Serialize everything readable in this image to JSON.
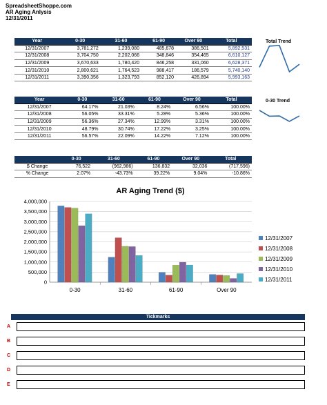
{
  "header": {
    "company": "SpreadsheetShoppe.com",
    "report": "AR Aging Anlysis",
    "date": "12/31/2011"
  },
  "colors": {
    "header_bg": "#17365d",
    "series": [
      "#4f81bd",
      "#c0504d",
      "#9bbb59",
      "#8064a2",
      "#4bacc6"
    ],
    "trend_line": "#2e6aa6"
  },
  "table1": {
    "columns": [
      "Year",
      "0-30",
      "31-60",
      "61-90",
      "Over 90",
      "Total"
    ],
    "rows": [
      [
        "12/31/2007",
        "3,781,272",
        "1,239,080",
        "485,678",
        "386,501",
        "5,892,531"
      ],
      [
        "12/31/2008",
        "3,704,750",
        "2,202,066",
        "348,846",
        "354,465",
        "6,610,127"
      ],
      [
        "12/31/2009",
        "3,670,633",
        "1,780,420",
        "846,258",
        "331,060",
        "6,628,371"
      ],
      [
        "12/31/2010",
        "2,800,621",
        "1,764,523",
        "988,417",
        "186,579",
        "5,740,140"
      ],
      [
        "12/31/2011",
        "3,390,356",
        "1,323,793",
        "852,120",
        "426,894",
        "5,993,163"
      ]
    ]
  },
  "table2": {
    "columns": [
      "Year",
      "0-30",
      "31-60",
      "61-90",
      "Over 90",
      "Total"
    ],
    "rows": [
      [
        "12/31/2007",
        "64.17%",
        "21.03%",
        "8.24%",
        "6.56%",
        "100.00%"
      ],
      [
        "12/31/2008",
        "56.05%",
        "33.31%",
        "5.28%",
        "5.36%",
        "100.00%"
      ],
      [
        "12/31/2009",
        "56.36%",
        "27.34%",
        "12.99%",
        "3.31%",
        "100.00%"
      ],
      [
        "12/31/2010",
        "48.79%",
        "30.74%",
        "17.22%",
        "3.25%",
        "100.00%"
      ],
      [
        "12/31/2011",
        "56.57%",
        "22.09%",
        "14.22%",
        "7.12%",
        "100.00%"
      ]
    ]
  },
  "table3": {
    "columns": [
      "",
      "0-30",
      "31-60",
      "61-90",
      "Over 90",
      "Total"
    ],
    "rows": [
      [
        "$ Change",
        "76,522",
        "(962,986)",
        "136,832",
        "32,036",
        "(717,596)"
      ],
      [
        "% Change",
        "2.07%",
        "-43.73%",
        "39.22%",
        "9.04%",
        "-10.86%"
      ]
    ]
  },
  "trends": {
    "total_title": "Total Trend",
    "total_values": [
      5892531,
      6610127,
      6628371,
      5740140,
      5993163
    ],
    "zero30_title": "0-30 Trend",
    "zero30_values": [
      64.17,
      56.05,
      56.36,
      48.79,
      56.57
    ]
  },
  "chart_data": {
    "type": "bar",
    "title": "AR Aging Trend ($)",
    "categories": [
      "0-30",
      "31-60",
      "61-90",
      "Over 90"
    ],
    "ylim": [
      0,
      4000000
    ],
    "yticks": [
      "0",
      "500,000",
      "1,000,000",
      "1,500,000",
      "2,000,000",
      "2,500,000",
      "3,000,000",
      "3,500,000",
      "4,000,000"
    ],
    "legend_position": "right",
    "grid": true,
    "series": [
      {
        "name": "12/31/2007",
        "values": [
          3781272,
          1239080,
          485678,
          386501
        ]
      },
      {
        "name": "12/31/2008",
        "values": [
          3704750,
          2202066,
          348846,
          354465
        ]
      },
      {
        "name": "12/31/2009",
        "values": [
          3670633,
          1780420,
          846258,
          331060
        ]
      },
      {
        "name": "12/31/2010",
        "values": [
          2800621,
          1764523,
          988417,
          186579
        ]
      },
      {
        "name": "12/31/2011",
        "values": [
          3390356,
          1323793,
          852120,
          426894
        ]
      }
    ]
  },
  "tickmarks": {
    "title": "Tickmarks",
    "letters": [
      "A",
      "B",
      "C",
      "D",
      "E"
    ]
  }
}
